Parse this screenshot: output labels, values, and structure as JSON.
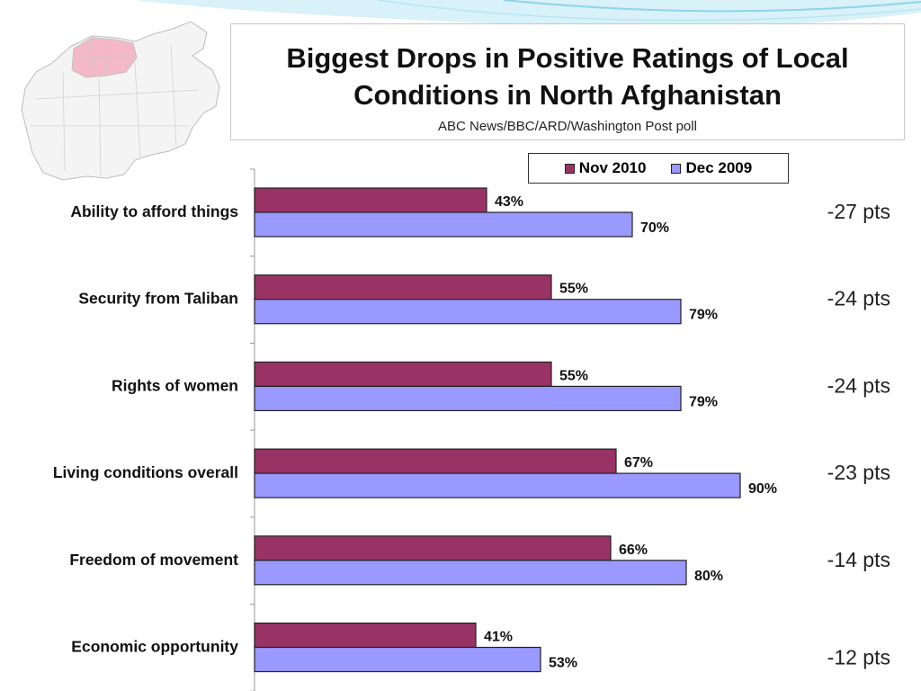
{
  "header": {
    "title": "Biggest Drops in Positive Ratings of Local Conditions in North Afghanistan",
    "subtitle": "ABC News/BBC/ARD/Washington Post poll"
  },
  "colors": {
    "nov2010": "#993366",
    "dec2009": "#9999ff",
    "map_highlight": "#f4b8c8",
    "map_fill": "#f4f4f4",
    "accent_wave": "#8fd3ea"
  },
  "legend": {
    "items": [
      {
        "label": "Nov 2010"
      },
      {
        "label": "Dec 2009"
      }
    ]
  },
  "chart_data": {
    "type": "bar",
    "orientation": "horizontal",
    "title": "Biggest Drops in Positive Ratings of Local Conditions in North Afghanistan",
    "subtitle": "ABC News/BBC/ARD/Washington Post poll",
    "categories": [
      "Ability to afford things",
      "Security from Taliban",
      "Rights of women",
      "Living conditions overall",
      "Freedom of movement",
      "Economic opportunity"
    ],
    "series": [
      {
        "name": "Nov 2010",
        "values": [
          43,
          55,
          55,
          67,
          66,
          41
        ]
      },
      {
        "name": "Dec 2009",
        "values": [
          70,
          79,
          79,
          90,
          80,
          53
        ]
      }
    ],
    "value_suffix": "%",
    "differences": [
      "-27 pts",
      "-24 pts",
      "-24 pts",
      "-23 pts",
      "-14 pts",
      "-12 pts"
    ],
    "xlim": [
      0,
      100
    ],
    "grid": false,
    "legend_position": "top-right"
  }
}
